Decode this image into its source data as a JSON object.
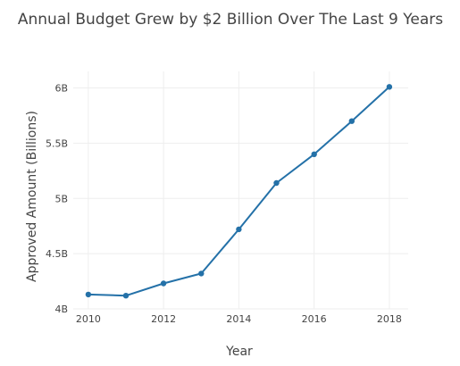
{
  "chart_data": {
    "type": "line",
    "title": "Annual Budget Grew by $2 Billion Over The Last 9 Years",
    "xlabel": "Year",
    "ylabel": "Approved Amount (Billions)",
    "x": [
      2010,
      2011,
      2012,
      2013,
      2014,
      2015,
      2016,
      2017,
      2018
    ],
    "series": [
      {
        "values": [
          4.13,
          4.12,
          4.23,
          4.32,
          4.72,
          5.14,
          5.4,
          5.7,
          6.01
        ],
        "color": "#2471a8"
      }
    ],
    "xlim": [
      2009.6,
      2018.5
    ],
    "ylim": [
      4.0,
      6.15
    ],
    "x_ticks": [
      2010,
      2012,
      2014,
      2016,
      2018
    ],
    "x_tick_labels": [
      "2010",
      "2012",
      "2014",
      "2016",
      "2018"
    ],
    "y_ticks": [
      4.0,
      4.5,
      5.0,
      5.5,
      6.0
    ],
    "y_tick_labels": [
      "4B",
      "4.5B",
      "5B",
      "5.5B",
      "6B"
    ],
    "grid": true,
    "legend": "none"
  }
}
